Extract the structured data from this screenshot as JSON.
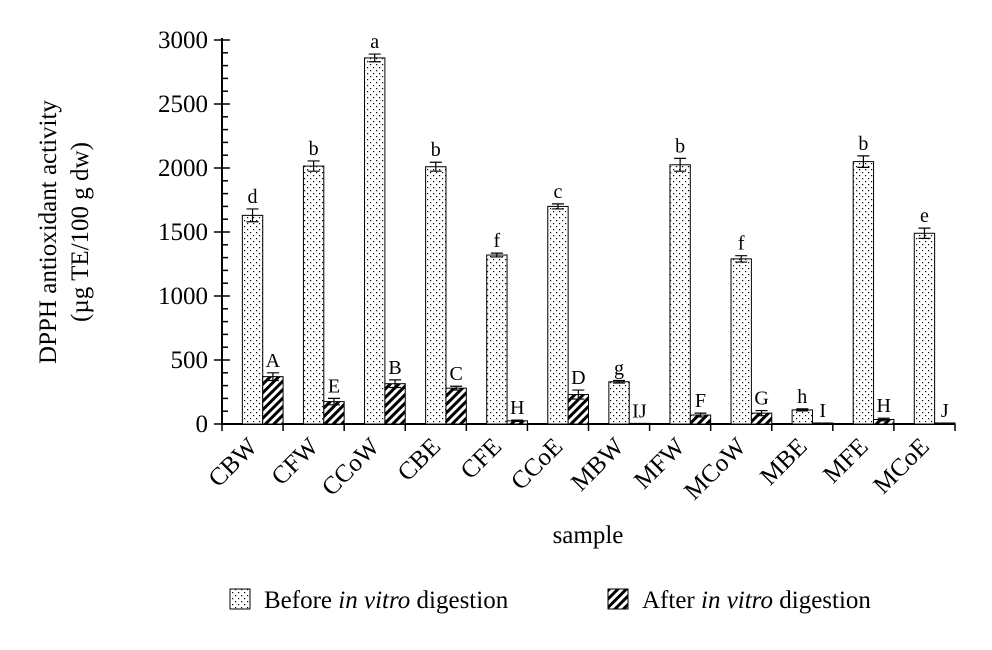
{
  "chart_data": {
    "type": "bar",
    "title": "",
    "xlabel": "sample",
    "ylabel_line1": "DPPH antioxidant activity",
    "ylabel_line2": "(µg TE/100 g dw)",
    "ylim": [
      0,
      3000
    ],
    "yticks": [
      0,
      500,
      1000,
      1500,
      2000,
      2500,
      3000
    ],
    "ytick_labels": [
      "0",
      "500",
      "1000",
      "1500",
      "2000",
      "2500",
      "3000"
    ],
    "categories": [
      "CBW",
      "CFW",
      "CCoW",
      "CBE",
      "CFE",
      "CCoE",
      "MBW",
      "MFW",
      "MCoW",
      "MBE",
      "MFE",
      "MCoE"
    ],
    "series": [
      {
        "name": "Before in vitro digestion",
        "pattern": "dots",
        "values": [
          1630,
          2015,
          2860,
          2010,
          1320,
          1700,
          330,
          2025,
          1290,
          110,
          2050,
          1490
        ],
        "errors": [
          50,
          40,
          30,
          35,
          15,
          20,
          10,
          50,
          25,
          8,
          45,
          40
        ],
        "letters": [
          "d",
          "b",
          "a",
          "b",
          "f",
          "c",
          "g",
          "b",
          "f",
          "h",
          "b",
          "e"
        ]
      },
      {
        "name": "After in vitro digestion",
        "pattern": "hatch",
        "values": [
          370,
          175,
          315,
          280,
          25,
          230,
          5,
          70,
          85,
          8,
          35,
          8
        ],
        "errors": [
          30,
          25,
          30,
          15,
          5,
          35,
          0,
          15,
          20,
          0,
          10,
          0
        ],
        "letters": [
          "A",
          "E",
          "B",
          "C",
          "H",
          "D",
          "IJ",
          "F",
          "G",
          "I",
          "H",
          "J"
        ]
      }
    ],
    "legend": {
      "placement": "bottom",
      "items": [
        {
          "pre": "Before ",
          "italic": "in vitro",
          "post": " digestion"
        },
        {
          "pre": "After ",
          "italic": "in vitro",
          "post": " digestion"
        }
      ]
    },
    "grid": false
  }
}
